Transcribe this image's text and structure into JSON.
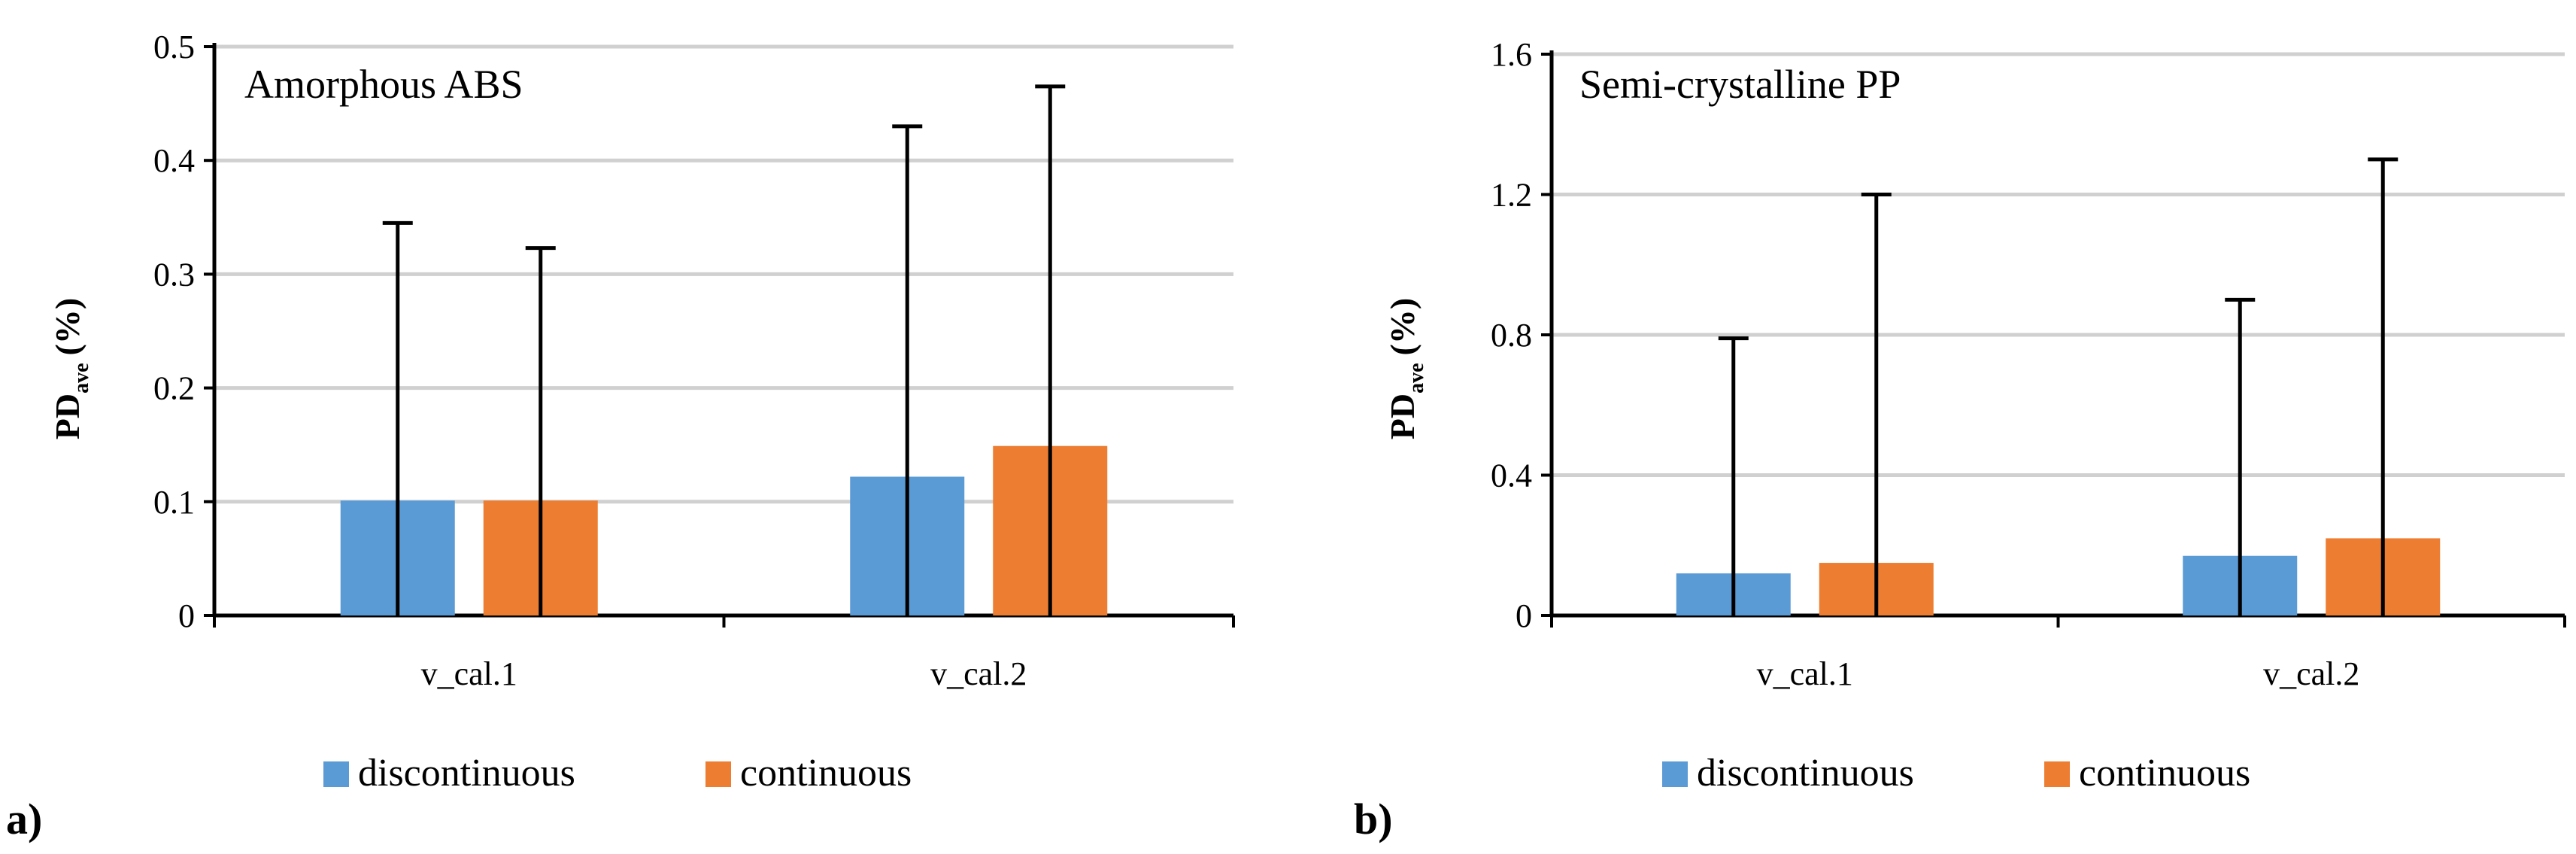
{
  "chart_data": [
    {
      "type": "bar",
      "panel_label": "a)",
      "title": "Amorphous ABS",
      "ylabel_main": "PD",
      "ylabel_sub": "ave",
      "ylabel_unit": "(%)",
      "ylim": [
        0,
        0.5
      ],
      "yticks": [
        0,
        0.1,
        0.2,
        0.3,
        0.4,
        0.5
      ],
      "ytick_labels": [
        "0",
        "0.1",
        "0.2",
        "0.3",
        "0.4",
        "0.5"
      ],
      "categories": [
        "v_cal.1",
        "v_cal.2"
      ],
      "series": [
        {
          "name": "discontinuous",
          "color": "#5B9BD5",
          "values": [
            0.101,
            0.122
          ],
          "error_top": [
            0.345,
            0.43
          ]
        },
        {
          "name": "continuous",
          "color": "#ED7D31",
          "values": [
            0.101,
            0.149
          ],
          "error_top": [
            0.323,
            0.465
          ]
        }
      ],
      "legend": [
        "discontinuous",
        "continuous"
      ],
      "grid": true
    },
    {
      "type": "bar",
      "panel_label": "b)",
      "title": "Semi-crystalline  PP",
      "ylabel_main": "PD",
      "ylabel_sub": "ave",
      "ylabel_unit": "(%)",
      "ylim": [
        0,
        1.6
      ],
      "yticks": [
        0,
        0.4,
        0.8,
        1.2,
        1.6
      ],
      "ytick_labels": [
        "0",
        "0.4",
        "0.8",
        "1.2",
        "1.6"
      ],
      "categories": [
        "v_cal.1",
        "v_cal.2"
      ],
      "series": [
        {
          "name": "discontinuous",
          "color": "#5B9BD5",
          "values": [
            0.12,
            0.17
          ],
          "error_top": [
            0.79,
            0.9
          ]
        },
        {
          "name": "continuous",
          "color": "#ED7D31",
          "values": [
            0.15,
            0.22
          ],
          "error_top": [
            1.2,
            1.3
          ]
        }
      ],
      "legend": [
        "discontinuous",
        "continuous"
      ],
      "grid": true
    }
  ]
}
